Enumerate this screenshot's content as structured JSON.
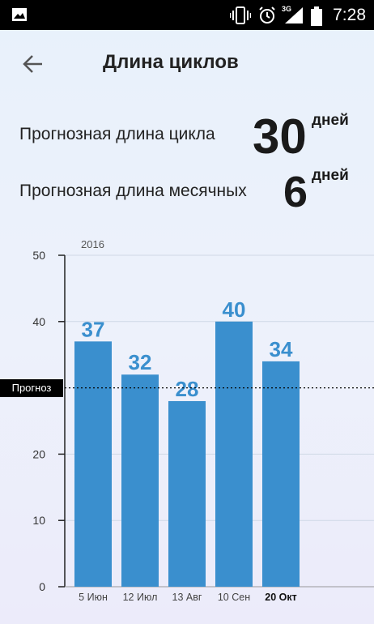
{
  "status_bar": {
    "time": "7:28",
    "network": "3G",
    "icons": [
      "gallery-icon",
      "vibrate-icon",
      "alarm-icon",
      "signal-icon",
      "battery-icon"
    ]
  },
  "header": {
    "title": "Длина циклов",
    "back_icon": "arrow-left-icon"
  },
  "summary": {
    "cycle_label": "Прогнозная длина цикла",
    "cycle_value": "30",
    "cycle_unit": "дней",
    "period_label": "Прогнозная длина месячных",
    "period_value": "6",
    "period_unit": "дней"
  },
  "chart_data": {
    "type": "bar",
    "year_label": "2016",
    "categories": [
      "5 Июн",
      "12 Июл",
      "13 Авг",
      "10 Сен",
      "20 Окт"
    ],
    "values": [
      37,
      32,
      28,
      40,
      34
    ],
    "highlight_category": "20 Окт",
    "ylim": [
      0,
      50
    ],
    "yticks": [
      0,
      10,
      20,
      40,
      50
    ],
    "forecast_label": "Прогноз",
    "forecast_value": 30,
    "grid": true,
    "colors": {
      "bar": "#3a8fce",
      "value_label": "#3a8fce",
      "grid": "#cfd8e6"
    }
  }
}
